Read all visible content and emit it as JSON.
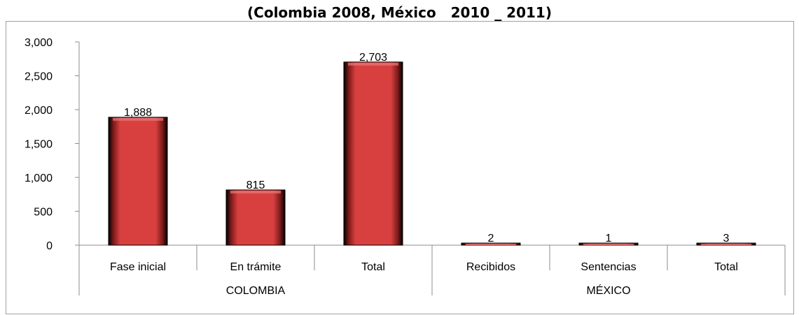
{
  "chart_data": {
    "type": "bar",
    "title": "(Colombia 2008, México   2010 _ 2011)",
    "categories": [
      "Fase inicial",
      "En trámite",
      "Total",
      "Recibidos",
      "Sentencias",
      "Total"
    ],
    "groups": [
      {
        "name": "COLOMBIA",
        "categories": [
          "Fase inicial",
          "En trámite",
          "Total"
        ]
      },
      {
        "name": "MÉXICO",
        "categories": [
          "Recibidos",
          "Sentencias",
          "Total"
        ]
      }
    ],
    "values": [
      1888,
      815,
      2703,
      2,
      1,
      3
    ],
    "data_labels": [
      "1,888",
      "815",
      "2,703",
      "2",
      "1",
      "3"
    ],
    "yticks": [
      "0",
      "500",
      "1,000",
      "1,500",
      "2,000",
      "2,500",
      "3,000"
    ],
    "ylim": [
      0,
      3000
    ],
    "bar_color": "#d84040",
    "grid": false,
    "legend": "none"
  }
}
